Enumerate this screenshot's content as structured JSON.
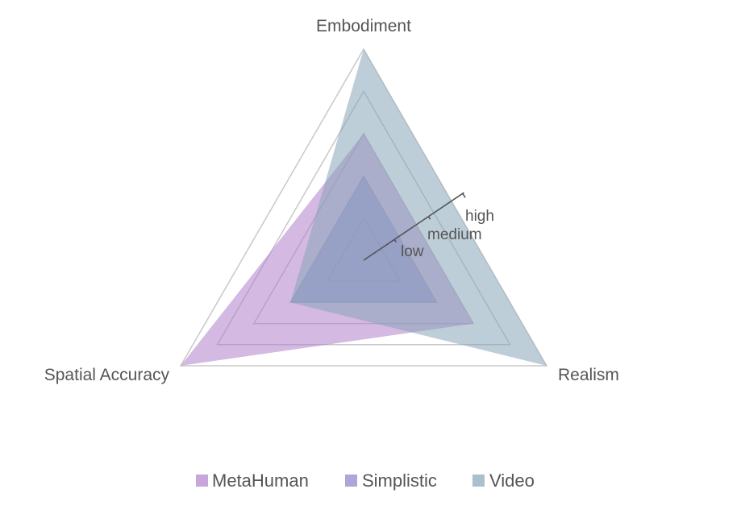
{
  "chart_data": {
    "type": "radar",
    "axes": [
      "Embodiment",
      "Realism",
      "Spatial Accuracy"
    ],
    "levels": [
      "low",
      "medium",
      "high"
    ],
    "scale_max": 5,
    "grid_rings": 5,
    "series": [
      {
        "name": "MetaHuman",
        "values": [
          3,
          3,
          5
        ],
        "color": "#b07fcb"
      },
      {
        "name": "Simplistic",
        "values": [
          2,
          2,
          2
        ],
        "color": "#8a80c8"
      },
      {
        "name": "Video",
        "values": [
          5,
          5,
          2
        ],
        "color": "#86a6b8"
      }
    ],
    "legend_position": "bottom",
    "grid": true
  }
}
